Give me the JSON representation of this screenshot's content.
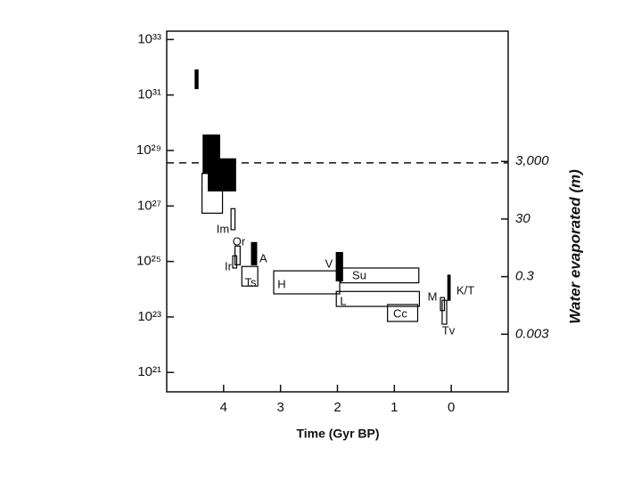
{
  "chart_data": {
    "type": "range",
    "xlabel": "Time (Gyr BP)",
    "y2label": "Water evaporated (m)",
    "xlim": [
      5,
      -1
    ],
    "xticks": [
      4,
      3,
      2,
      1,
      0
    ],
    "ylim": [
      2e+20,
      2e+33
    ],
    "ylog": true,
    "yticks": [
      {
        "value": 1e+33,
        "label": "10³³"
      },
      {
        "value": 1e+31,
        "label": "10³¹"
      },
      {
        "value": 1e+29,
        "label": "10²⁹"
      },
      {
        "value": 1e+27,
        "label": "10²⁷"
      },
      {
        "value": 1e+25,
        "label": "10²⁵"
      },
      {
        "value": 1e+23,
        "label": "10²³"
      },
      {
        "value": 1e+21,
        "label": "10²¹"
      }
    ],
    "y2lim": [
      3e-05,
      100000000.0
    ],
    "y2log": true,
    "y2ticks": [
      {
        "value": 3000,
        "label": "3,000"
      },
      30,
      0.3,
      0.003
    ],
    "threshold": 3.6e+28,
    "color": "#000000",
    "boxes": [
      {
        "x": [
          4.5,
          4.45
        ],
        "y": [
          1.7e+31,
          8e+31
        ],
        "filled": true
      },
      {
        "x": [
          4.36,
          4.07
        ],
        "y": [
          1.5e+28,
          3.6e+29
        ],
        "filled": true
      },
      {
        "x": [
          4.27,
          3.79
        ],
        "y": [
          3.5e+27,
          5e+28
        ],
        "filled": true
      },
      {
        "x": [
          4.38,
          4.02
        ],
        "y": [
          5.5e+26,
          1.5e+28
        ],
        "filled": false
      },
      {
        "label": "Im",
        "x": [
          3.87,
          3.8
        ],
        "y": [
          1.4e+26,
          8e+26
        ],
        "filled": false
      },
      {
        "label": "Or",
        "x": [
          3.8,
          3.71
        ],
        "y": [
          7.6e+24,
          3.6e+25
        ],
        "filled": false
      },
      {
        "label": "Ir",
        "x": [
          3.84,
          3.77
        ],
        "y": [
          5.8e+24,
          1.6e+25
        ],
        "filled": false
      },
      {
        "label": "A",
        "x": [
          3.51,
          3.42
        ],
        "y": [
          7.6e+24,
          4.8e+25
        ],
        "filled": true
      },
      {
        "label": "Ts",
        "x": [
          3.68,
          3.4
        ],
        "y": [
          1.3e+24,
          6.6e+24
        ],
        "filled": false
      },
      {
        "label": "H",
        "x": [
          3.12,
          1.96
        ],
        "y": [
          6.8e+23,
          4.6e+24
        ],
        "filled": false
      },
      {
        "label": "V",
        "x": [
          2.02,
          1.91
        ],
        "y": [
          2e+24,
          2.1e+25
        ],
        "filled": true
      },
      {
        "label": "Su",
        "x": [
          1.94,
          0.57
        ],
        "y": [
          1.7e+24,
          5.8e+24
        ],
        "filled": false
      },
      {
        "label": "L",
        "x": [
          2.02,
          0.56
        ],
        "y": [
          2.4e+23,
          8.3e+23
        ],
        "filled": false
      },
      {
        "label": "Cc",
        "x": [
          1.12,
          0.59
        ],
        "y": [
          6.9e+22,
          2.8e+23
        ],
        "filled": false
      },
      {
        "label": "K/T",
        "x": [
          0.06,
          0.02
        ],
        "y": [
          4e+23,
          3.2e+24
        ],
        "filled": true
      },
      {
        "label": "M",
        "x": [
          0.19,
          0.12
        ],
        "y": [
          1.7e+23,
          5e+23
        ],
        "filled": false
      },
      {
        "label": "Tv",
        "x": [
          0.16,
          0.08
        ],
        "y": [
          5.5e+22,
          4e+23
        ],
        "filled": false
      }
    ]
  }
}
